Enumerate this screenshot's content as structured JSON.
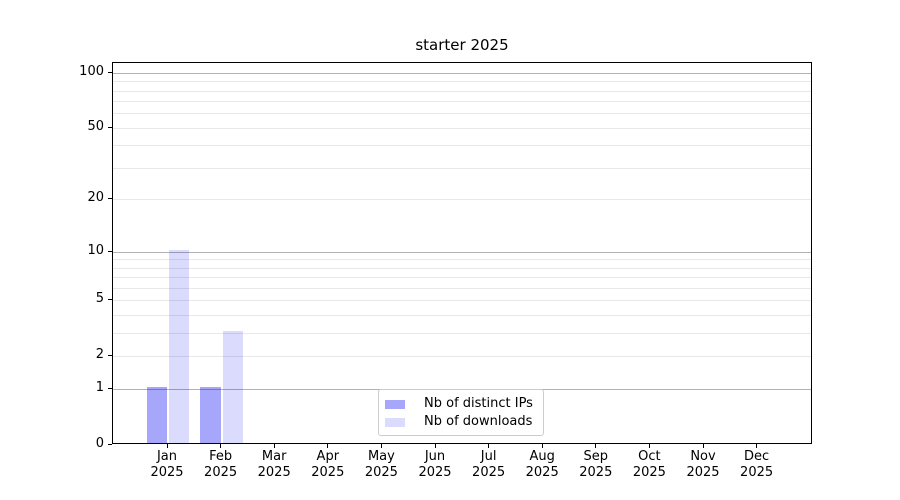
{
  "figure": {
    "background": "#ffffff"
  },
  "chart_data": {
    "type": "bar",
    "title": "starter 2025",
    "categories": [
      "Jan",
      "Feb",
      "Mar",
      "Apr",
      "May",
      "Jun",
      "Jul",
      "Aug",
      "Sep",
      "Oct",
      "Nov",
      "Dec"
    ],
    "x_year": "2025",
    "series": [
      {
        "name": "Nb of distinct IPs",
        "color": "rgba(0,0,240,0.35)",
        "apparent_hex": "#a7a7f7",
        "values": [
          1,
          1,
          0,
          0,
          0,
          0,
          0,
          0,
          0,
          0,
          0,
          0
        ]
      },
      {
        "name": "Nb of downloads",
        "color": "rgba(0,0,240,0.14)",
        "apparent_hex": "#dbdbf9",
        "values": [
          10,
          3,
          0,
          0,
          0,
          0,
          0,
          0,
          0,
          0,
          0,
          0
        ]
      }
    ],
    "yscale": "log1p",
    "ylim": [
      0,
      113
    ],
    "yticks": [
      0,
      1,
      2,
      5,
      10,
      20,
      50,
      100
    ],
    "major_gridlines": [
      1,
      10,
      100
    ],
    "minor_gridlines": [
      2,
      3,
      4,
      5,
      6,
      7,
      8,
      9,
      20,
      30,
      40,
      50,
      60,
      70,
      80,
      90
    ],
    "grid": true,
    "legend_position": "lower center"
  },
  "colors": {
    "major_grid": "#b2b2b2",
    "minor_grid": "#e8e8e8",
    "axis": "#000000",
    "text": "#000000",
    "legend_border": "#cccccc"
  }
}
